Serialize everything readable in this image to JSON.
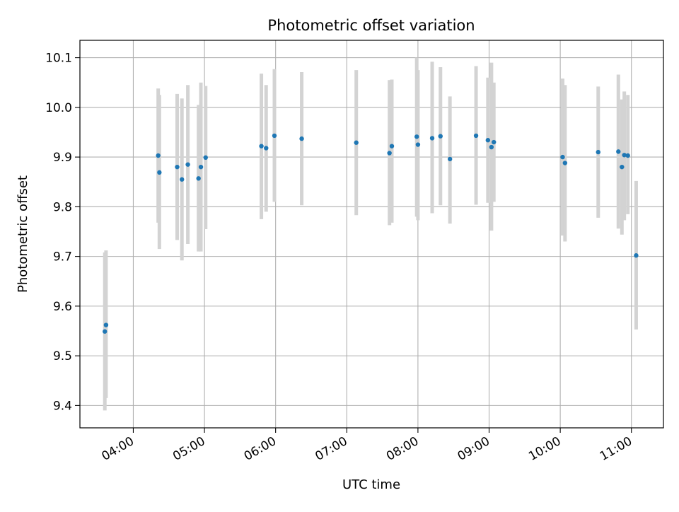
{
  "chart_data": {
    "type": "scatter",
    "title": "Photometric offset variation",
    "xlabel": "UTC time",
    "ylabel": "Photometric offset",
    "x_unit": "UTC time (HH:MM)",
    "xlim": [
      "03:15",
      "11:27"
    ],
    "ylim": [
      9.355,
      10.135
    ],
    "x_ticks": [
      "04:00",
      "05:00",
      "06:00",
      "07:00",
      "08:00",
      "09:00",
      "10:00",
      "11:00"
    ],
    "y_ticks": [
      "9.4",
      "9.5",
      "9.6",
      "9.7",
      "9.8",
      "9.9",
      "10.0",
      "10.1"
    ],
    "grid": true,
    "legend": "none",
    "point_color": "#1f77b4",
    "errorbar_color": "#d3d3d3",
    "points": [
      {
        "t": "03:36",
        "y": 9.549,
        "lo": 9.39,
        "hi": 9.708
      },
      {
        "t": "03:37",
        "y": 9.562,
        "lo": 9.415,
        "hi": 9.712
      },
      {
        "t": "04:21",
        "y": 9.903,
        "lo": 9.768,
        "hi": 10.038
      },
      {
        "t": "04:22",
        "y": 9.869,
        "lo": 9.715,
        "hi": 10.025
      },
      {
        "t": "04:37",
        "y": 9.88,
        "lo": 9.733,
        "hi": 10.027
      },
      {
        "t": "04:41",
        "y": 9.855,
        "lo": 9.692,
        "hi": 10.018
      },
      {
        "t": "04:46",
        "y": 9.885,
        "lo": 9.725,
        "hi": 10.045
      },
      {
        "t": "04:55",
        "y": 9.857,
        "lo": 9.71,
        "hi": 10.005
      },
      {
        "t": "04:57",
        "y": 9.88,
        "lo": 9.71,
        "hi": 10.05
      },
      {
        "t": "05:01",
        "y": 9.899,
        "lo": 9.755,
        "hi": 10.043
      },
      {
        "t": "05:48",
        "y": 9.922,
        "lo": 9.775,
        "hi": 10.068
      },
      {
        "t": "05:52",
        "y": 9.918,
        "lo": 9.79,
        "hi": 10.045
      },
      {
        "t": "05:59",
        "y": 9.943,
        "lo": 9.81,
        "hi": 10.077
      },
      {
        "t": "06:22",
        "y": 9.937,
        "lo": 9.803,
        "hi": 10.071
      },
      {
        "t": "07:08",
        "y": 9.929,
        "lo": 9.783,
        "hi": 10.075
      },
      {
        "t": "07:36",
        "y": 9.908,
        "lo": 9.763,
        "hi": 10.055
      },
      {
        "t": "07:38",
        "y": 9.922,
        "lo": 9.768,
        "hi": 10.056
      },
      {
        "t": "07:59",
        "y": 9.941,
        "lo": 9.78,
        "hi": 10.1
      },
      {
        "t": "08:00",
        "y": 9.925,
        "lo": 9.773,
        "hi": 10.075
      },
      {
        "t": "08:12",
        "y": 9.938,
        "lo": 9.787,
        "hi": 10.092
      },
      {
        "t": "08:19",
        "y": 9.942,
        "lo": 9.803,
        "hi": 10.081
      },
      {
        "t": "08:27",
        "y": 9.896,
        "lo": 9.766,
        "hi": 10.022
      },
      {
        "t": "08:49",
        "y": 9.943,
        "lo": 9.804,
        "hi": 10.083
      },
      {
        "t": "08:59",
        "y": 9.934,
        "lo": 9.808,
        "hi": 10.06
      },
      {
        "t": "09:02",
        "y": 9.92,
        "lo": 9.752,
        "hi": 10.09
      },
      {
        "t": "09:04",
        "y": 9.93,
        "lo": 9.81,
        "hi": 10.05
      },
      {
        "t": "10:02",
        "y": 9.9,
        "lo": 9.742,
        "hi": 10.058
      },
      {
        "t": "10:04",
        "y": 9.888,
        "lo": 9.73,
        "hi": 10.045
      },
      {
        "t": "10:32",
        "y": 9.91,
        "lo": 9.778,
        "hi": 10.042
      },
      {
        "t": "10:49",
        "y": 9.911,
        "lo": 9.756,
        "hi": 10.066
      },
      {
        "t": "10:52",
        "y": 9.88,
        "lo": 9.744,
        "hi": 10.016
      },
      {
        "t": "10:54",
        "y": 9.904,
        "lo": 9.773,
        "hi": 10.032
      },
      {
        "t": "10:57",
        "y": 9.903,
        "lo": 9.785,
        "hi": 10.025
      },
      {
        "t": "11:04",
        "y": 9.702,
        "lo": 9.553,
        "hi": 9.852
      }
    ]
  }
}
